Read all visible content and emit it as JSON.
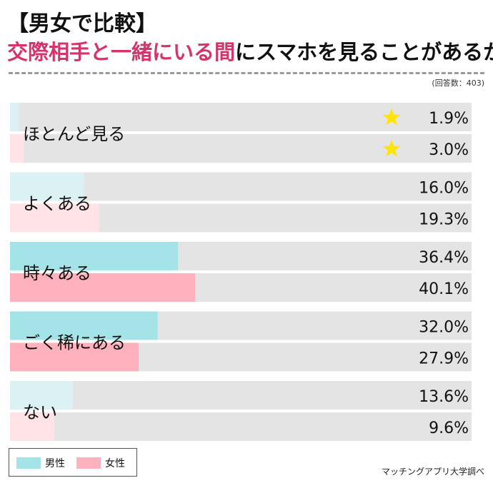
{
  "header": {
    "title_line1": "【男女で比較】",
    "title_line2_highlight": "交際相手と一緒にいる間",
    "title_line2_rest": "にスマホを見ることがあるか",
    "respondents": "(回答数：403)"
  },
  "colors": {
    "male_strong": "#a4e4e9",
    "male_light": "#dcf1f4",
    "female_strong": "#ffb1bd",
    "female_light": "#ffe3e6",
    "track": "#e4e4e4",
    "accent_title": "#d6336c",
    "star": "#ffe600"
  },
  "chart_data": {
    "type": "bar",
    "orientation": "horizontal",
    "unit": "%",
    "xlim": [
      0,
      100
    ],
    "categories": [
      "ほとんど見る",
      "よくある",
      "時々ある",
      "ごく稀にある",
      "ない"
    ],
    "series": [
      {
        "name": "男性",
        "values": [
          1.9,
          16.0,
          36.4,
          32.0,
          13.6
        ],
        "labels": [
          "1.9%",
          "16.0%",
          "36.4%",
          "32.0%",
          "13.6%"
        ]
      },
      {
        "name": "女性",
        "values": [
          3.0,
          19.3,
          40.1,
          27.9,
          9.6
        ],
        "labels": [
          "3.0%",
          "19.3%",
          "40.1%",
          "27.9%",
          "9.6%"
        ]
      }
    ],
    "emphasized_categories": [
      2,
      3
    ],
    "starred_category": 0,
    "legend": "bottom-left"
  },
  "legend": {
    "male": "男性",
    "female": "女性"
  },
  "source": "マッチングアプリ大学調べ"
}
